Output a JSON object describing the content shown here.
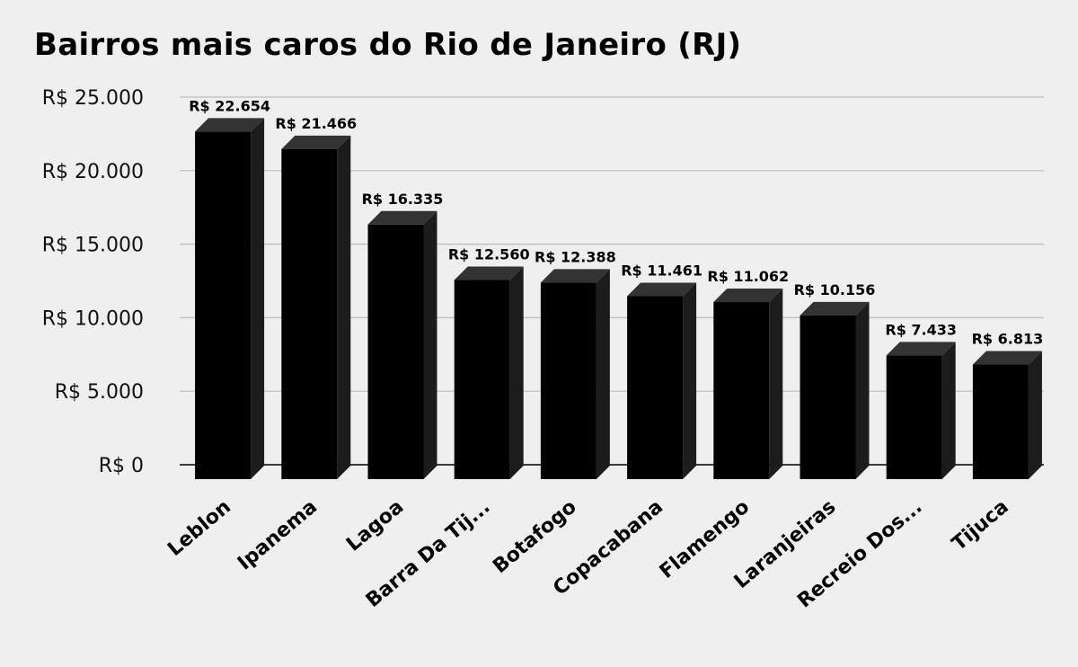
{
  "chart_data": {
    "type": "bar",
    "title": "Bairros mais caros do Rio de Janeiro (RJ)",
    "categories": [
      "Leblon",
      "Ipanema",
      "Lagoa",
      "Barra Da Tij...",
      "Botafogo",
      "Copacabana",
      "Flamengo",
      "Laranjeiras",
      "Recreio Dos...",
      "Tijuca"
    ],
    "values": [
      22654,
      21466,
      16335,
      12560,
      12388,
      11461,
      11062,
      10156,
      7433,
      6813
    ],
    "value_labels": [
      "R$ 22.654",
      "R$ 21.466",
      "R$ 16.335",
      "R$ 12.560",
      "R$ 12.388",
      "R$ 11.461",
      "R$ 11.062",
      "R$ 10.156",
      "R$ 7.433",
      "R$ 6.813"
    ],
    "yticks": [
      0,
      5000,
      10000,
      15000,
      20000,
      25000
    ],
    "ytick_labels": [
      "R$ 0",
      "R$ 5.000",
      "R$ 10.000",
      "R$ 15.000",
      "R$ 20.000",
      "R$ 25.000"
    ],
    "ylim": [
      0,
      25000
    ],
    "xlabel": "",
    "ylabel": "",
    "grid": true,
    "style": "3d-bar",
    "colors": {
      "bar_front": "#000000",
      "bar_top": "#333333",
      "bar_side": "#1c1c1c",
      "grid": "#bdbdbd",
      "axis": "#000000",
      "background": "#efefef"
    }
  }
}
